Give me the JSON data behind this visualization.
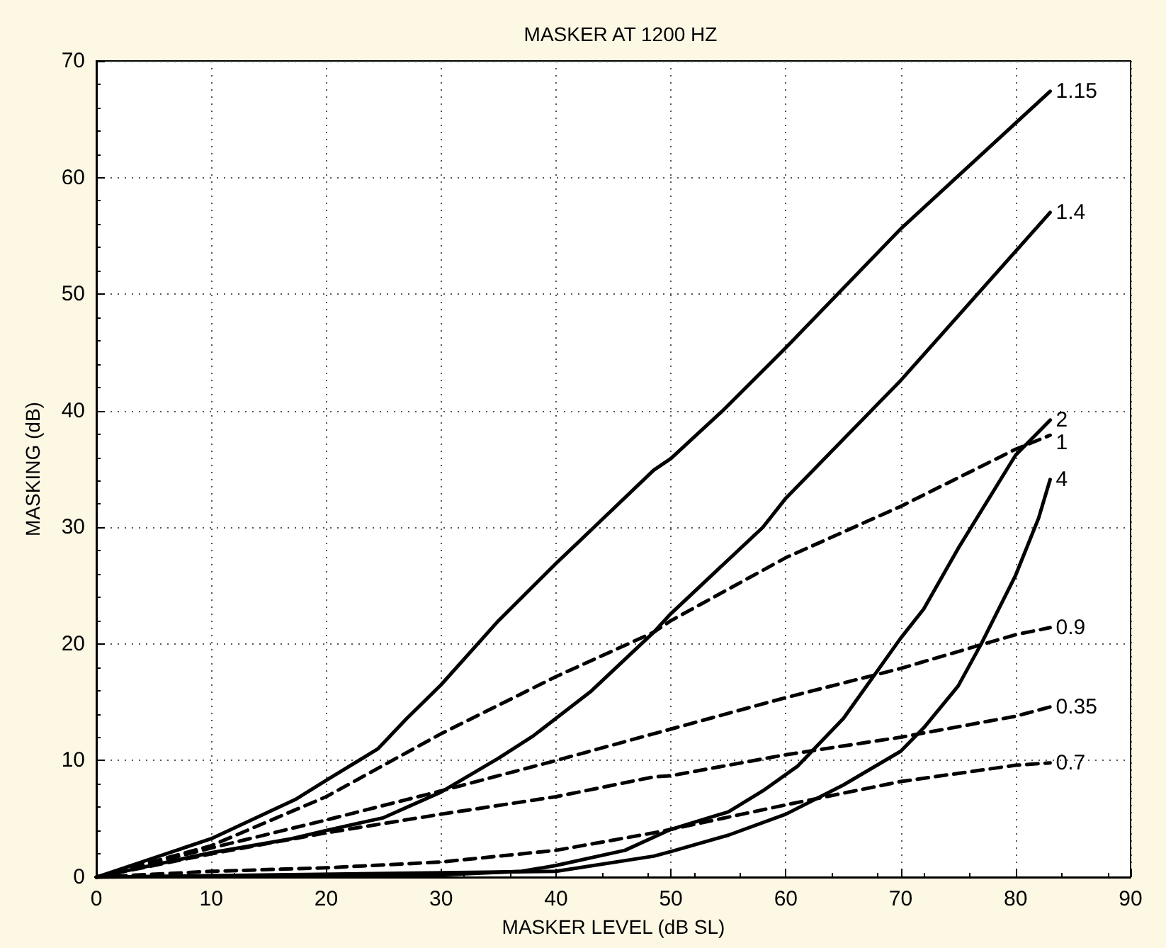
{
  "chart_data": {
    "type": "line",
    "title": "MASKER AT 1200 HZ",
    "xlabel": "MASKER LEVEL (dB SL)",
    "ylabel": "MASKING (dB)",
    "xlim": [
      0,
      90
    ],
    "xticks": [
      0,
      10,
      20,
      30,
      40,
      50,
      60,
      70,
      80,
      90
    ],
    "ylim": [
      0,
      70
    ],
    "yticks": [
      0,
      10,
      20,
      30,
      40,
      50,
      60,
      70
    ],
    "grid": true,
    "legend": false,
    "marker": "none",
    "series": [
      {
        "name": "1.15",
        "color": "#000000",
        "line_style": "solid",
        "x": [
          0,
          10,
          17.4,
          20,
          24.5,
          27,
          30,
          35,
          40,
          43.3,
          48.5,
          50,
          54.5,
          60,
          70,
          83
        ],
        "values": [
          0,
          3.3,
          6.7,
          8.3,
          11,
          13.6,
          16.5,
          22,
          26.9,
          30,
          34.9,
          35.9,
          40,
          45.4,
          55.6,
          67.4
        ]
      },
      {
        "name": "1.4",
        "color": "#000000",
        "line_style": "solid",
        "x": [
          0,
          10,
          17,
          20,
          25,
          30,
          35,
          38,
          43,
          48.5,
          50,
          58,
          60,
          70,
          83
        ],
        "values": [
          0,
          2.1,
          3.3,
          4,
          5.1,
          7.3,
          10.2,
          12.1,
          15.9,
          21,
          22.6,
          30,
          32.5,
          42.6,
          57
        ]
      },
      {
        "name": "1",
        "color": "#000000",
        "line_style": "dashed",
        "x": [
          0,
          10,
          20,
          30,
          40,
          48.5,
          50,
          60,
          70,
          80,
          83
        ],
        "values": [
          0,
          2.7,
          6.9,
          12.3,
          17.2,
          21,
          22,
          27.4,
          31.8,
          36.7,
          37.9
        ]
      },
      {
        "name": "0.9",
        "color": "#000000",
        "line_style": "dashed",
        "x": [
          0,
          10,
          20,
          30,
          40,
          48.5,
          50,
          60,
          70,
          80,
          83
        ],
        "values": [
          0,
          2.5,
          4.9,
          7.4,
          10,
          12.3,
          12.7,
          15.4,
          17.9,
          20.8,
          21.4
        ]
      },
      {
        "name": "0.35",
        "color": "#000000",
        "line_style": "dashed",
        "x": [
          0,
          10,
          20,
          30,
          40,
          48.5,
          50,
          60,
          70,
          80,
          83
        ],
        "values": [
          0,
          2,
          3.8,
          5.4,
          6.9,
          8.6,
          8.7,
          10.5,
          12,
          13.8,
          14.6
        ]
      },
      {
        "name": "0.7",
        "color": "#000000",
        "line_style": "dashed",
        "x": [
          0,
          10,
          20,
          30,
          40,
          48.5,
          50,
          60,
          70,
          80,
          83
        ],
        "values": [
          0,
          0.5,
          0.8,
          1.3,
          2.3,
          3.8,
          4.1,
          6.2,
          8.2,
          9.6,
          9.8
        ]
      },
      {
        "name": "2",
        "color": "#000000",
        "line_style": "solid",
        "x": [
          0,
          30,
          37,
          40,
          46,
          50,
          55,
          58,
          61,
          65,
          70,
          72,
          75,
          80,
          83
        ],
        "values": [
          0,
          0.2,
          0.5,
          1,
          2.3,
          4.1,
          5.6,
          7.4,
          9.5,
          13.6,
          20.5,
          23,
          28.2,
          36.2,
          39.2
        ]
      },
      {
        "name": "4",
        "color": "#000000",
        "line_style": "solid",
        "x": [
          0,
          40,
          48.5,
          50,
          55,
          60,
          65,
          70,
          72,
          75,
          77,
          80,
          82,
          83
        ],
        "values": [
          0,
          0.5,
          1.8,
          2.2,
          3.6,
          5.4,
          7.9,
          10.8,
          12.8,
          16.4,
          20,
          25.9,
          30.8,
          34.1
        ]
      }
    ]
  }
}
